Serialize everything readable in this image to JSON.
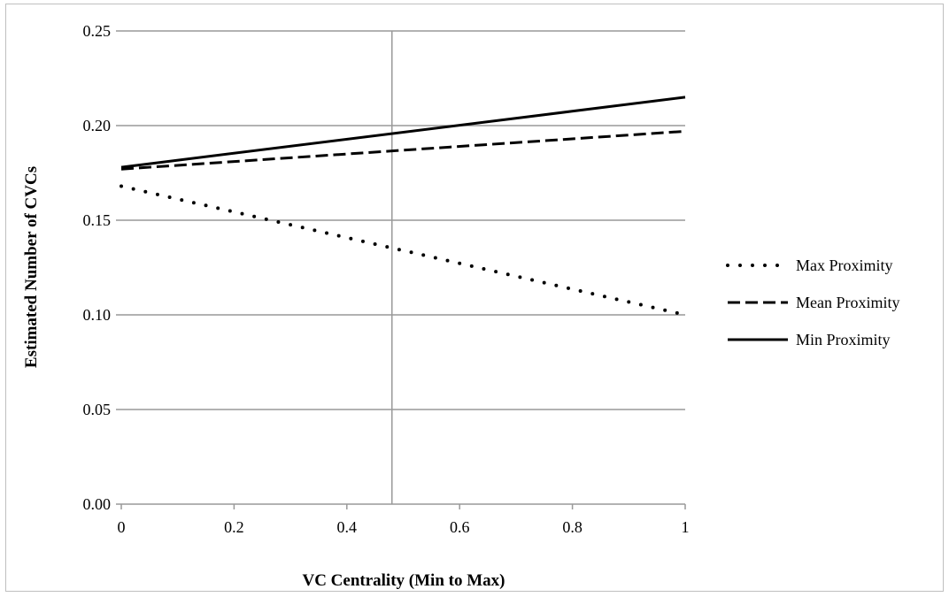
{
  "chart_data": {
    "type": "line",
    "title": "",
    "xlabel": "VC Centrality (Min to Max)",
    "ylabel": "Estimated Number of CVCs",
    "xlim": [
      0,
      1
    ],
    "ylim": [
      0,
      0.25
    ],
    "x_ticks": [
      0,
      0.2,
      0.4,
      0.6,
      0.8,
      1
    ],
    "x_tick_labels": [
      "0",
      "0.2",
      "0.4",
      "0.6",
      "0.8",
      "1"
    ],
    "y_ticks": [
      0,
      0.05,
      0.1,
      0.15,
      0.2,
      0.25
    ],
    "y_tick_labels": [
      "0.00",
      "0.05",
      "0.10",
      "0.15",
      "0.20",
      "0.25"
    ],
    "grid": "horizontal",
    "reference_line_x": 0.48,
    "legend_position": "right",
    "series": [
      {
        "name": "Max Proximity",
        "style": "dotted",
        "color": "#000000",
        "x": [
          0,
          1
        ],
        "y": [
          0.168,
          0.1
        ]
      },
      {
        "name": "Mean Proximity",
        "style": "dashed",
        "color": "#000000",
        "x": [
          0,
          1
        ],
        "y": [
          0.177,
          0.197
        ]
      },
      {
        "name": "Min Proximity",
        "style": "solid",
        "color": "#000000",
        "x": [
          0,
          1
        ],
        "y": [
          0.178,
          0.215
        ]
      }
    ]
  }
}
